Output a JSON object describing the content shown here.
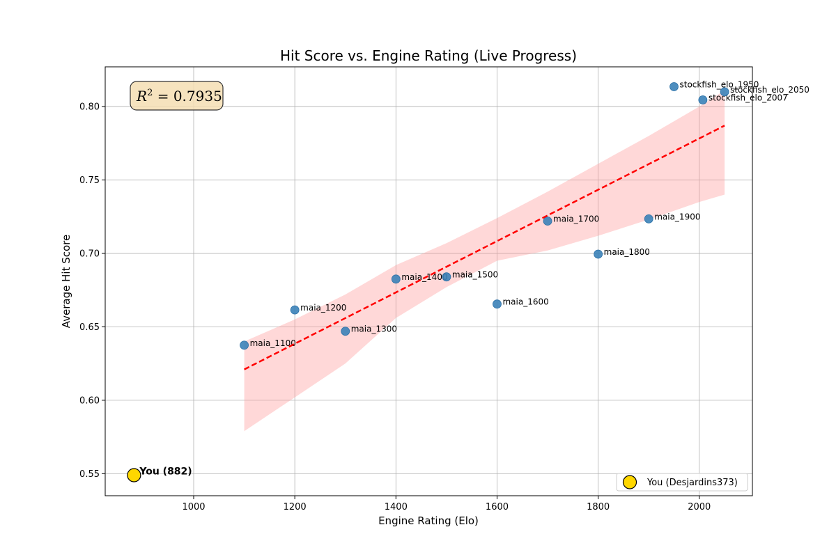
{
  "chart_data": {
    "type": "scatter",
    "title": "Hit Score vs. Engine Rating (Live Progress)",
    "xlabel": "Engine Rating (Elo)",
    "ylabel": "Average Hit Score",
    "xlim": [
      825,
      2105
    ],
    "ylim": [
      0.535,
      0.827
    ],
    "xticks": [
      1000,
      1200,
      1400,
      1600,
      1800,
      2000
    ],
    "yticks": [
      0.55,
      0.6,
      0.65,
      0.7,
      0.75,
      0.8
    ],
    "grid": true,
    "r2_label": "0.7935",
    "points": [
      {
        "label": "maia_1100",
        "x": 1100,
        "y": 0.6375
      },
      {
        "label": "maia_1200",
        "x": 1200,
        "y": 0.6615
      },
      {
        "label": "maia_1300",
        "x": 1300,
        "y": 0.647
      },
      {
        "label": "maia_1400",
        "x": 1400,
        "y": 0.6825
      },
      {
        "label": "maia_1500",
        "x": 1500,
        "y": 0.684
      },
      {
        "label": "maia_1600",
        "x": 1600,
        "y": 0.6655
      },
      {
        "label": "maia_1700",
        "x": 1700,
        "y": 0.722
      },
      {
        "label": "maia_1800",
        "x": 1800,
        "y": 0.6995
      },
      {
        "label": "maia_1900",
        "x": 1900,
        "y": 0.7235
      },
      {
        "label": "stockfish_elo_1950",
        "x": 1950,
        "y": 0.8135
      },
      {
        "label": "stockfish_elo_2007",
        "x": 2007,
        "y": 0.8045
      },
      {
        "label": "stockfish_elo_2050",
        "x": 2050,
        "y": 0.81
      }
    ],
    "fit_line": {
      "x": [
        1100,
        2050
      ],
      "y": [
        0.621,
        0.787
      ],
      "color": "#ff0000",
      "style": "dashed"
    },
    "confidence_band": {
      "x": [
        1100,
        1200,
        1300,
        1400,
        1500,
        1600,
        1700,
        1800,
        1900,
        2000,
        2050
      ],
      "lower": [
        0.579,
        0.602,
        0.625,
        0.656,
        0.677,
        0.695,
        0.702,
        0.712,
        0.723,
        0.735,
        0.74
      ],
      "upper": [
        0.64,
        0.655,
        0.672,
        0.692,
        0.707,
        0.724,
        0.742,
        0.761,
        0.78,
        0.8,
        0.811
      ]
    },
    "you": {
      "x": 882,
      "y": 0.549,
      "label": "You (882)",
      "color": "#ffd700"
    },
    "legend": {
      "position": "lower-right",
      "entries": [
        {
          "label": "You (Desjardins373)",
          "color": "#ffd700"
        }
      ]
    },
    "point_color": "#3b82b8"
  }
}
